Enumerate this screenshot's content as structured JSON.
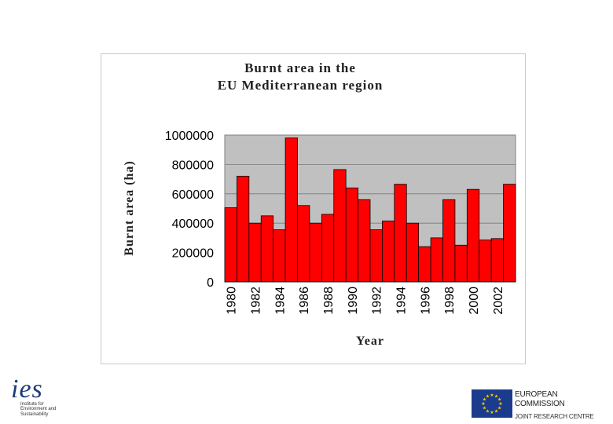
{
  "chart_data": {
    "type": "bar",
    "title_lines": [
      "Burnt area in the",
      "EU Mediterranean region"
    ],
    "xlabel": "Year",
    "ylabel": "Burnt area (ha)",
    "ylim": [
      0,
      1000000
    ],
    "y_ticks": [
      "0",
      "200000",
      "400000",
      "600000",
      "800000",
      "1000000"
    ],
    "y_tick_values": [
      0,
      200000,
      400000,
      600000,
      800000,
      1000000
    ],
    "x_tick_labels": [
      "1980",
      "1982",
      "1984",
      "1986",
      "1988",
      "1990",
      "1992",
      "1994",
      "1996",
      "1998",
      "2000",
      "2002"
    ],
    "categories": [
      1980,
      1981,
      1982,
      1983,
      1984,
      1985,
      1986,
      1987,
      1988,
      1989,
      1990,
      1991,
      1992,
      1993,
      1994,
      1995,
      1996,
      1997,
      1998,
      1999,
      2000,
      2001,
      2002,
      2003
    ],
    "values": [
      505000,
      720000,
      400000,
      450000,
      355000,
      980000,
      520000,
      400000,
      460000,
      765000,
      640000,
      560000,
      355000,
      415000,
      665000,
      400000,
      240000,
      300000,
      560000,
      250000,
      630000,
      285000,
      295000,
      665000
    ],
    "bar_color": "#ff0000",
    "plot_background": "#c0c0c0",
    "grid": true,
    "legend": "none"
  },
  "logos": {
    "ies": {
      "mark": "ies",
      "name_lines": [
        "Institute for",
        "Environment and",
        "Sustainability"
      ],
      "color": "#1a3a7a"
    },
    "ec": {
      "line1": "EUROPEAN COMMISSION",
      "line2": "JOINT RESEARCH CENTRE",
      "flag_color": "#1b3c8c",
      "star_color": "#ffcc00"
    }
  }
}
